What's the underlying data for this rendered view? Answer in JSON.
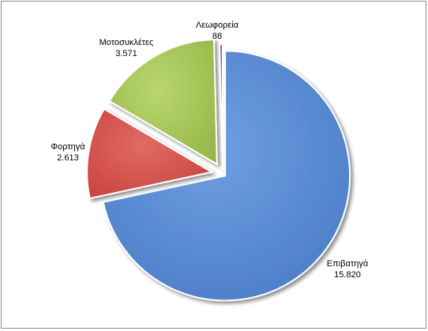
{
  "chart_data": {
    "type": "pie",
    "title": "",
    "labels": [
      "Επιβατηγά",
      "Φορτηγά",
      "Μοτοσυκλέτες",
      "Λεωφορεία"
    ],
    "values": [
      15820,
      2613,
      3571,
      88
    ],
    "value_labels": [
      "15.820",
      "2.613",
      "3.571",
      "88"
    ],
    "colors": [
      "#5b8ed6",
      "#d9534f",
      "#a9c85a",
      "#7e5fa8"
    ],
    "exploded": true,
    "shadow": true,
    "legend": "none",
    "data_labels": "outside, category name and value"
  }
}
